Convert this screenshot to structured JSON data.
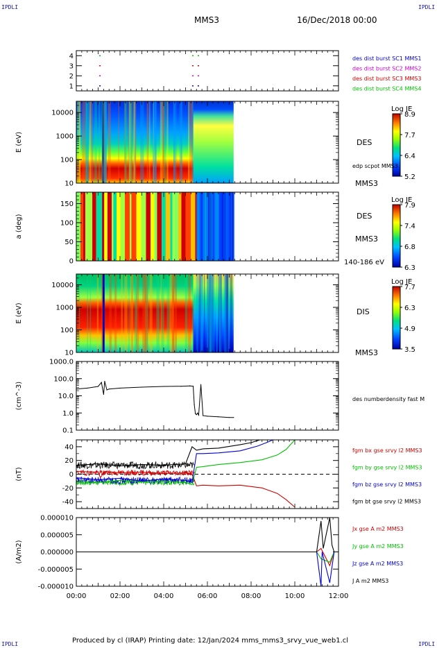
{
  "header": {
    "corner_tl": "IPDLI",
    "corner_tr": "IPDLI",
    "corner_bl": "IPDLI",
    "corner_br": "IPDLI",
    "spacecraft": "MMS3",
    "date": "16/Dec/2018 00:00"
  },
  "footer": "Produced by cl (IRAP)   Printing date: 12/Jan/2024   mms_mms3_srvy_vue_web1.cl",
  "colors": {
    "blue": "#0000d0",
    "magenta": "#d000d0",
    "red": "#d00000",
    "green": "#00c000",
    "black": "#000000"
  },
  "chart_data": [
    {
      "type": "scatter",
      "panel": "burst",
      "ylim": [
        0.5,
        4.5
      ],
      "yticks": [
        "1",
        "2",
        "3",
        "4"
      ],
      "xlim": [
        0,
        12
      ],
      "series": [
        {
          "name": "des dist burst SC1 MMS1",
          "color": "#0000d0",
          "level": 1,
          "intervals": [
            [
              1.05,
              1.3
            ],
            [
              5.3,
              5.75
            ]
          ]
        },
        {
          "name": "des dist burst SC2 MMS2",
          "color": "#d000d0",
          "level": 2,
          "intervals": [
            [
              1.05,
              1.3
            ],
            [
              5.3,
              5.75
            ]
          ]
        },
        {
          "name": "des dist burst SC3 MMS3",
          "color": "#d00000",
          "level": 3,
          "intervals": [
            [
              1.05,
              1.3
            ],
            [
              5.3,
              5.75
            ]
          ]
        },
        {
          "name": "des dist burst SC4 MMS4",
          "color": "#00c000",
          "level": 4,
          "intervals": [
            [
              1.05,
              1.3
            ],
            [
              5.3,
              5.75
            ]
          ]
        }
      ]
    },
    {
      "type": "heatmap",
      "panel": "des-energy",
      "ylabel": "E (eV)",
      "yscale": "log",
      "ylim": [
        10,
        30000
      ],
      "yticks": [
        "10",
        "100",
        "1000",
        "10000"
      ],
      "xlim": [
        0,
        12
      ],
      "data_x_end": 7.2,
      "colorbar": {
        "label": "Log JE",
        "ticks": [
          "8.9",
          "7.7",
          "6.4",
          "5.2"
        ]
      },
      "label_instrument": "DES",
      "label_overlay": "edp scpot MMS3",
      "label_sc": "MMS3"
    },
    {
      "type": "heatmap",
      "panel": "des-pitch",
      "ylabel": "a (deg)",
      "ylim": [
        0,
        180
      ],
      "yticks": [
        "0",
        "50",
        "100",
        "150"
      ],
      "xlim": [
        0,
        12
      ],
      "data_x_end": 7.2,
      "colorbar": {
        "label": "Log JE",
        "ticks": [
          "7.9",
          "7.4",
          "6.8",
          "6.3"
        ]
      },
      "label_instrument": "DES",
      "label_sc": "MMS3",
      "label_range": "140-186 eV"
    },
    {
      "type": "heatmap",
      "panel": "dis-energy",
      "ylabel": "E (eV)",
      "yscale": "log",
      "ylim": [
        10,
        30000
      ],
      "yticks": [
        "10",
        "100",
        "1000",
        "10000"
      ],
      "xlim": [
        0,
        12
      ],
      "data_x_end": 7.2,
      "colorbar": {
        "label": "Log JE",
        "ticks": [
          "7.7",
          "6.3",
          "4.9",
          "3.5"
        ]
      },
      "label_instrument": "DIS",
      "label_sc": "MMS3"
    },
    {
      "type": "line",
      "panel": "density",
      "ylabel": "(cm^-3)",
      "yscale": "log",
      "ylim": [
        0.1,
        1000
      ],
      "yticks": [
        "0.1",
        "1.0",
        "10.0",
        "100.0",
        "1000.0"
      ],
      "xlim": [
        0,
        12
      ],
      "series": [
        {
          "name": "des numberdensity fast M",
          "color": "#000000",
          "x": [
            0,
            0.5,
            1.0,
            1.15,
            1.25,
            1.3,
            1.4,
            1.5,
            2.0,
            3.0,
            4.0,
            4.8,
            5.2,
            5.35,
            5.4,
            5.45,
            5.5,
            5.55,
            5.6,
            5.7,
            5.8,
            6.0,
            6.5,
            7.0,
            7.2
          ],
          "y": [
            25,
            28,
            35,
            60,
            12,
            70,
            22,
            25,
            28,
            32,
            35,
            36,
            38,
            36,
            3,
            0.9,
            0.8,
            1.0,
            0.75,
            45,
            0.7,
            0.65,
            0.6,
            0.55,
            0.55
          ]
        }
      ]
    },
    {
      "type": "line",
      "panel": "fgm",
      "ylabel": "(nT)",
      "ylim": [
        -50,
        50
      ],
      "yticks": [
        "-40",
        "-20",
        "0",
        "20",
        "40"
      ],
      "xlim": [
        0,
        12
      ],
      "series": [
        {
          "name": "fgm bx gse srvy l2 MMS3",
          "color": "#d00000",
          "x": [
            0,
            1,
            1.1,
            1.3,
            2,
            3,
            4,
            5,
            5.3,
            5.5,
            5.8,
            6.5,
            7.5,
            8.5,
            9.2,
            9.6,
            10.0
          ],
          "y": [
            4,
            3,
            -5,
            4,
            2,
            3,
            1,
            2,
            0,
            -17,
            -16,
            -17,
            -16,
            -20,
            -28,
            -37,
            -48
          ]
        },
        {
          "name": "fgm by gse srvy l2 MMS3",
          "color": "#00c000",
          "x": [
            0,
            1,
            2,
            3,
            4,
            5,
            5.3,
            5.5,
            5.8,
            6.5,
            7.5,
            8.5,
            9.2,
            9.6,
            10.0
          ],
          "y": [
            -10,
            -12,
            -9,
            -11,
            -10,
            -12,
            -15,
            10,
            11,
            14,
            17,
            21,
            28,
            36,
            50
          ]
        },
        {
          "name": "fgm bz gse srvy l2 MMS3",
          "color": "#0000d0",
          "x": [
            0,
            1,
            2,
            3,
            4,
            5,
            5.3,
            5.5,
            5.8,
            6.5,
            7.5,
            8.3,
            8.7,
            9.0
          ],
          "y": [
            -5,
            -8,
            -6,
            -10,
            -7,
            -9,
            -12,
            30,
            30,
            31,
            34,
            41,
            46,
            50
          ]
        },
        {
          "name": "fgm bt gse srvy l2 MMS3",
          "color": "#000000",
          "x": [
            0,
            1,
            2,
            3,
            4,
            5,
            5.3,
            5.5,
            5.8,
            6.5,
            7.5,
            8.0,
            8.4
          ],
          "y": [
            13,
            15,
            12,
            14,
            13,
            15,
            40,
            35,
            37,
            38,
            43,
            46,
            50
          ]
        }
      ],
      "reference_line": 0
    },
    {
      "type": "line",
      "panel": "current",
      "ylabel": "(A/m2)",
      "ylim": [
        -1e-05,
        1e-05
      ],
      "yticks": [
        "-0.000010",
        "-0.000005",
        "0.000000",
        "0.000005",
        "0.000010"
      ],
      "xlim": [
        0,
        12
      ],
      "xticks": [
        "00:00",
        "02:00",
        "04:00",
        "06:00",
        "08:00",
        "10:00",
        "12:00"
      ],
      "series": [
        {
          "name": "Jx gse A m2 MMS3",
          "color": "#d00000",
          "x": [
            0,
            11,
            11.2,
            11.6,
            11.8
          ],
          "y": [
            0,
            0,
            1e-06,
            -4e-06,
            0
          ]
        },
        {
          "name": "Jy gse A m2 MMS3",
          "color": "#00c000",
          "x": [
            0,
            11,
            11.2,
            11.6,
            11.8
          ],
          "y": [
            0,
            0,
            -2e-06,
            -3e-06,
            0
          ]
        },
        {
          "name": "Jz gse A m2 MMS3",
          "color": "#0000d0",
          "x": [
            0,
            11,
            11.2,
            11.25,
            11.6,
            11.8
          ],
          "y": [
            0,
            0,
            -1e-05,
            0,
            -9e-06,
            0
          ]
        },
        {
          "name": "J A m2 MMS3",
          "color": "#000000",
          "x": [
            0,
            11,
            11.2,
            11.3,
            11.6,
            11.7,
            11.8
          ],
          "y": [
            0,
            0,
            9e-06,
            1e-06,
            1e-05,
            2e-06,
            0
          ]
        }
      ]
    }
  ]
}
